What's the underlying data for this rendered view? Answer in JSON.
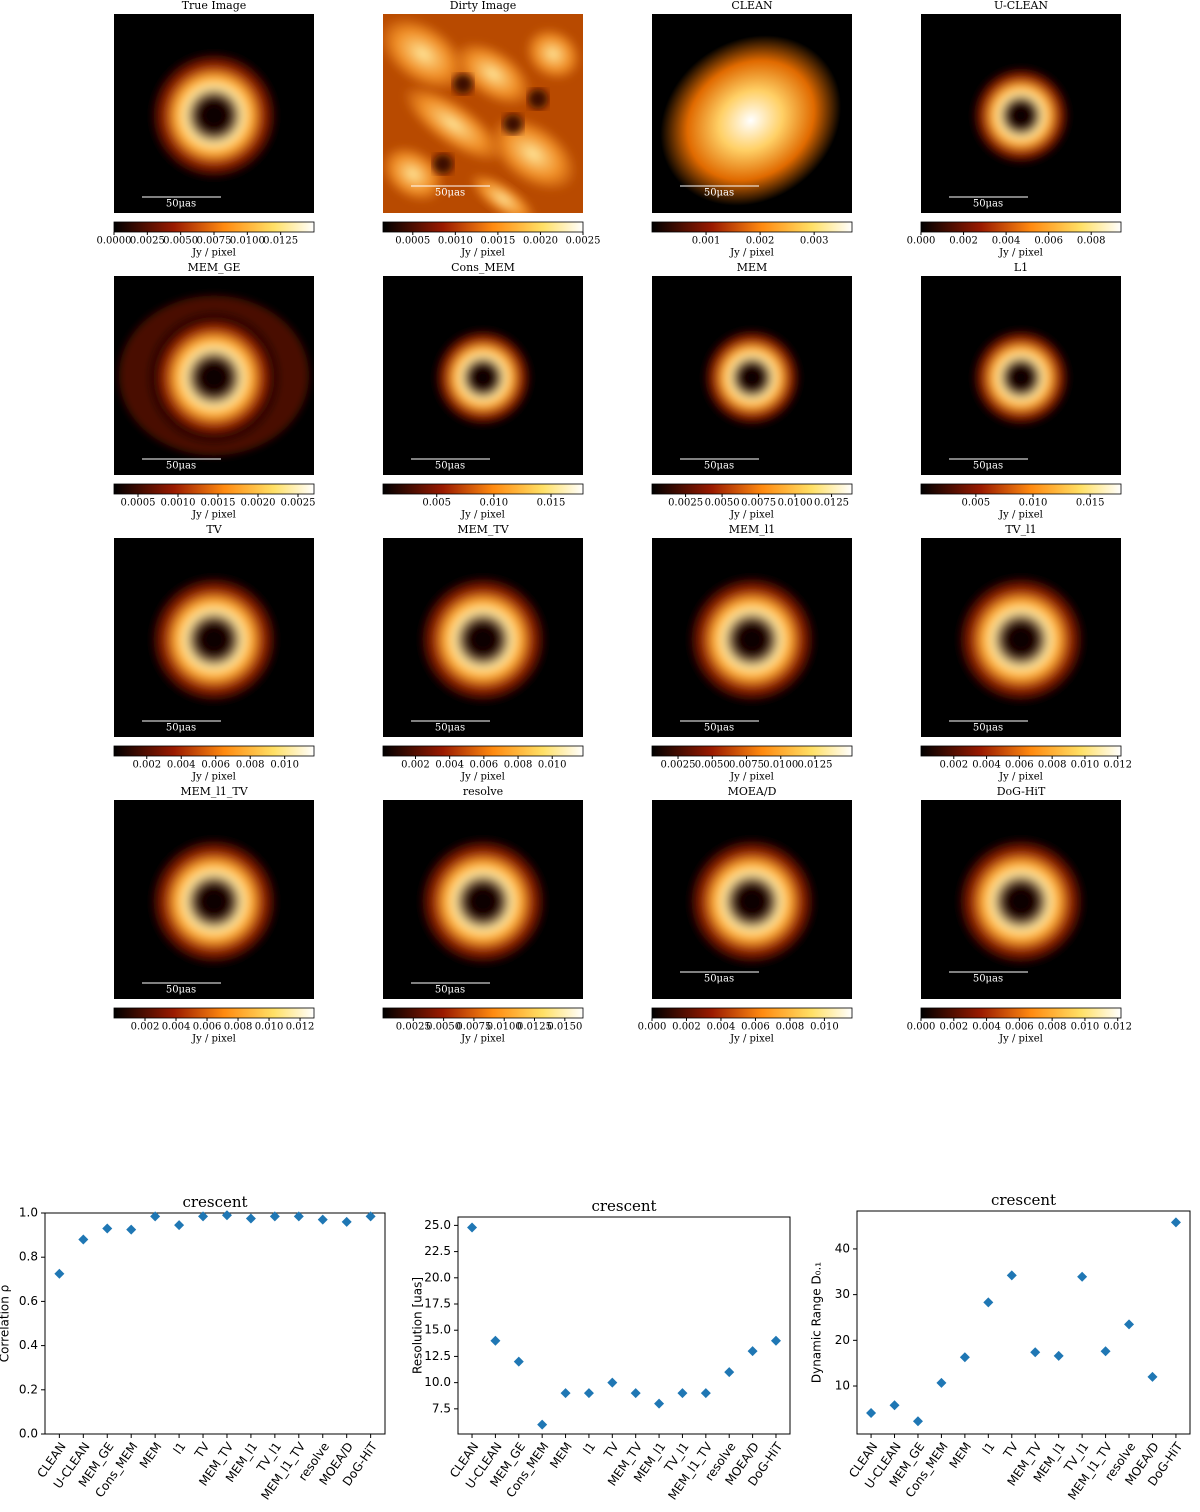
{
  "chart_data": [
    {
      "type": "image",
      "title": "True Image",
      "scalebar": "50μas",
      "colorbar_label": "Jy / pixel",
      "clim": [
        0,
        0.015
      ],
      "cticks": [
        {
          "value": 0,
          "label": "0.0000"
        },
        0.0025,
        {
          "value": 0.005,
          "label": "0.0050"
        },
        0.0075,
        {
          "value": 0.01,
          "label": "0.0100"
        },
        0.0125
      ]
    },
    {
      "type": "image",
      "title": "Dirty Image",
      "scalebar": "50μas",
      "colorbar_label": "Jy / pixel",
      "clim": [
        0.00015,
        0.0025
      ],
      "cticks": [
        0.0005,
        {
          "value": 0.001,
          "label": "0.0010"
        },
        0.0015,
        {
          "value": 0.002,
          "label": "0.0020"
        },
        0.0025
      ]
    },
    {
      "type": "image",
      "title": "CLEAN",
      "scalebar": "50μas",
      "colorbar_label": "Jy / pixel",
      "clim": [
        0,
        0.0037
      ],
      "cticks": [
        0.001,
        0.002,
        0.003
      ]
    },
    {
      "type": "image",
      "title": "U-CLEAN",
      "scalebar": "50μas",
      "colorbar_label": "Jy / pixel",
      "clim": [
        0,
        0.0094
      ],
      "cticks": [
        {
          "value": 0,
          "label": "0.000"
        },
        0.002,
        0.004,
        0.006,
        0.008
      ]
    },
    {
      "type": "image",
      "title": "MEM_GE",
      "scalebar": "50μas",
      "colorbar_label": "Jy / pixel",
      "clim": [
        0.0002,
        0.0027
      ],
      "cticks": [
        0.0005,
        {
          "value": 0.001,
          "label": "0.0010"
        },
        0.0015,
        {
          "value": 0.002,
          "label": "0.0020"
        },
        0.0025
      ]
    },
    {
      "type": "image",
      "title": "Cons_MEM",
      "scalebar": "50μas",
      "colorbar_label": "Jy / pixel",
      "clim": [
        0.0003,
        0.0178
      ],
      "cticks": [
        0.005,
        {
          "value": 0.01,
          "label": "0.010"
        },
        0.015
      ]
    },
    {
      "type": "image",
      "title": "MEM",
      "scalebar": "50μas",
      "colorbar_label": "Jy / pixel",
      "clim": [
        0.0002,
        0.0139
      ],
      "cticks": [
        0.0025,
        {
          "value": 0.005,
          "label": "0.0050"
        },
        0.0075,
        {
          "value": 0.01,
          "label": "0.0100"
        },
        0.0125
      ]
    },
    {
      "type": "image",
      "title": "L1",
      "scalebar": "50μas",
      "colorbar_label": "Jy / pixel",
      "clim": [
        0.0002,
        0.0177
      ],
      "cticks": [
        0.005,
        {
          "value": 0.01,
          "label": "0.010"
        },
        0.015
      ]
    },
    {
      "type": "image",
      "title": "TV",
      "scalebar": "50μas",
      "colorbar_label": "Jy / pixel",
      "clim": [
        0.0001,
        0.0117
      ],
      "cticks": [
        0.002,
        0.004,
        0.006,
        0.008,
        {
          "value": 0.01,
          "label": "0.010"
        }
      ]
    },
    {
      "type": "image",
      "title": "MEM_TV",
      "scalebar": "50μas",
      "colorbar_label": "Jy / pixel",
      "clim": [
        0.0001,
        0.0118
      ],
      "cticks": [
        0.002,
        0.004,
        0.006,
        0.008,
        {
          "value": 0.01,
          "label": "0.010"
        }
      ]
    },
    {
      "type": "image",
      "title": "MEM_l1",
      "scalebar": "50μas",
      "colorbar_label": "Jy / pixel",
      "clim": [
        0.0006,
        0.0152
      ],
      "cticks": [
        0.0025,
        {
          "value": 0.005,
          "label": "0.0050"
        },
        0.0075,
        {
          "value": 0.01,
          "label": "0.0100"
        },
        0.0125
      ]
    },
    {
      "type": "image",
      "title": "TV_l1",
      "scalebar": "50μas",
      "colorbar_label": "Jy / pixel",
      "clim": [
        0,
        0.0122
      ],
      "cticks": [
        0.002,
        0.004,
        0.006,
        0.008,
        {
          "value": 0.01,
          "label": "0.010"
        },
        0.012
      ]
    },
    {
      "type": "image",
      "title": "MEM_l1_TV",
      "scalebar": "50μas",
      "colorbar_label": "Jy / pixel",
      "clim": [
        0,
        0.0129
      ],
      "cticks": [
        0.002,
        0.004,
        0.006,
        0.008,
        {
          "value": 0.01,
          "label": "0.010"
        },
        0.012
      ]
    },
    {
      "type": "image",
      "title": "resolve",
      "scalebar": "50μas",
      "colorbar_label": "Jy / pixel",
      "clim": [
        0,
        0.0165
      ],
      "cticks": [
        0.0025,
        {
          "value": 0.005,
          "label": "0.0050"
        },
        0.0075,
        {
          "value": 0.01,
          "label": "0.0100"
        },
        0.0125,
        {
          "value": 0.015,
          "label": "0.0150"
        }
      ]
    },
    {
      "type": "image",
      "title": "MOEA/D",
      "scalebar": "50μas",
      "colorbar_label": "Jy / pixel",
      "clim": [
        0,
        0.0116
      ],
      "cticks": [
        {
          "value": 0,
          "label": "0.000"
        },
        0.002,
        0.004,
        0.006,
        0.008,
        {
          "value": 0.01,
          "label": "0.010"
        }
      ]
    },
    {
      "type": "image",
      "title": "DoG-HiT",
      "scalebar": "50μas",
      "colorbar_label": "Jy / pixel",
      "clim": [
        0,
        0.0122
      ],
      "cticks": [
        {
          "value": 0,
          "label": "0.000"
        },
        0.002,
        0.004,
        0.006,
        0.008,
        {
          "value": 0.01,
          "label": "0.010"
        },
        0.012
      ]
    },
    {
      "type": "scatter",
      "title": "crescent",
      "ylabel": "Correlation ρ",
      "color": "#1f77b4",
      "categories": [
        "CLEAN",
        "U-CLEAN",
        "MEM_GE",
        "Cons_MEM",
        "MEM",
        "l1",
        "TV",
        "MEM_TV",
        "MEM_l1",
        "TV_l1",
        "MEM_l1_TV",
        "resolve",
        "MOEA/D",
        "DoG-HiT"
      ],
      "values": [
        0.725,
        0.88,
        0.93,
        0.925,
        0.985,
        0.945,
        0.985,
        0.99,
        0.975,
        0.985,
        0.985,
        0.97,
        0.96,
        0.985
      ],
      "ylim": [
        0,
        1
      ],
      "yticks": [
        {
          "value": 0,
          "label": "0.0"
        },
        0.2,
        0.4,
        0.6,
        0.8,
        {
          "value": 1,
          "label": "1.0"
        }
      ]
    },
    {
      "type": "scatter",
      "title": "crescent",
      "ylabel": "Resolution [uas]",
      "color": "#1f77b4",
      "categories": [
        "CLEAN",
        "U-CLEAN",
        "MEM_GE",
        "Cons_MEM",
        "MEM",
        "l1",
        "TV",
        "MEM_TV",
        "MEM_l1",
        "TV_l1",
        "MEM_l1_TV",
        "resolve",
        "MOEA/D",
        "DoG-HiT"
      ],
      "values": [
        24.8,
        14,
        12,
        6,
        9,
        9,
        10,
        9,
        8,
        9,
        9,
        11,
        13,
        14
      ],
      "ylim": [
        5.1,
        25.8
      ],
      "yticks": [
        7.5,
        {
          "value": 10,
          "label": "10.0"
        },
        12.5,
        {
          "value": 15,
          "label": "15.0"
        },
        17.5,
        {
          "value": 20,
          "label": "20.0"
        },
        22.5,
        {
          "value": 25,
          "label": "25.0"
        }
      ]
    },
    {
      "type": "scatter",
      "title": "crescent",
      "ylabel": "Dynamic Range D₀.₁",
      "color": "#1f77b4",
      "categories": [
        "CLEAN",
        "U-CLEAN",
        "MEM_GE",
        "Cons_MEM",
        "MEM",
        "l1",
        "TV",
        "MEM_TV",
        "MEM_l1",
        "TV_l1",
        "MEM_l1_TV",
        "resolve",
        "MOEA/D",
        "DoG-HiT"
      ],
      "values": [
        4.1,
        5.8,
        2.3,
        10.7,
        16.3,
        28.3,
        34.2,
        17.4,
        16.6,
        33.9,
        17.6,
        23.5,
        12,
        45.8
      ],
      "ylim": [
        -0.5,
        48.3
      ],
      "yticks": [
        10,
        20,
        30,
        40
      ]
    }
  ]
}
